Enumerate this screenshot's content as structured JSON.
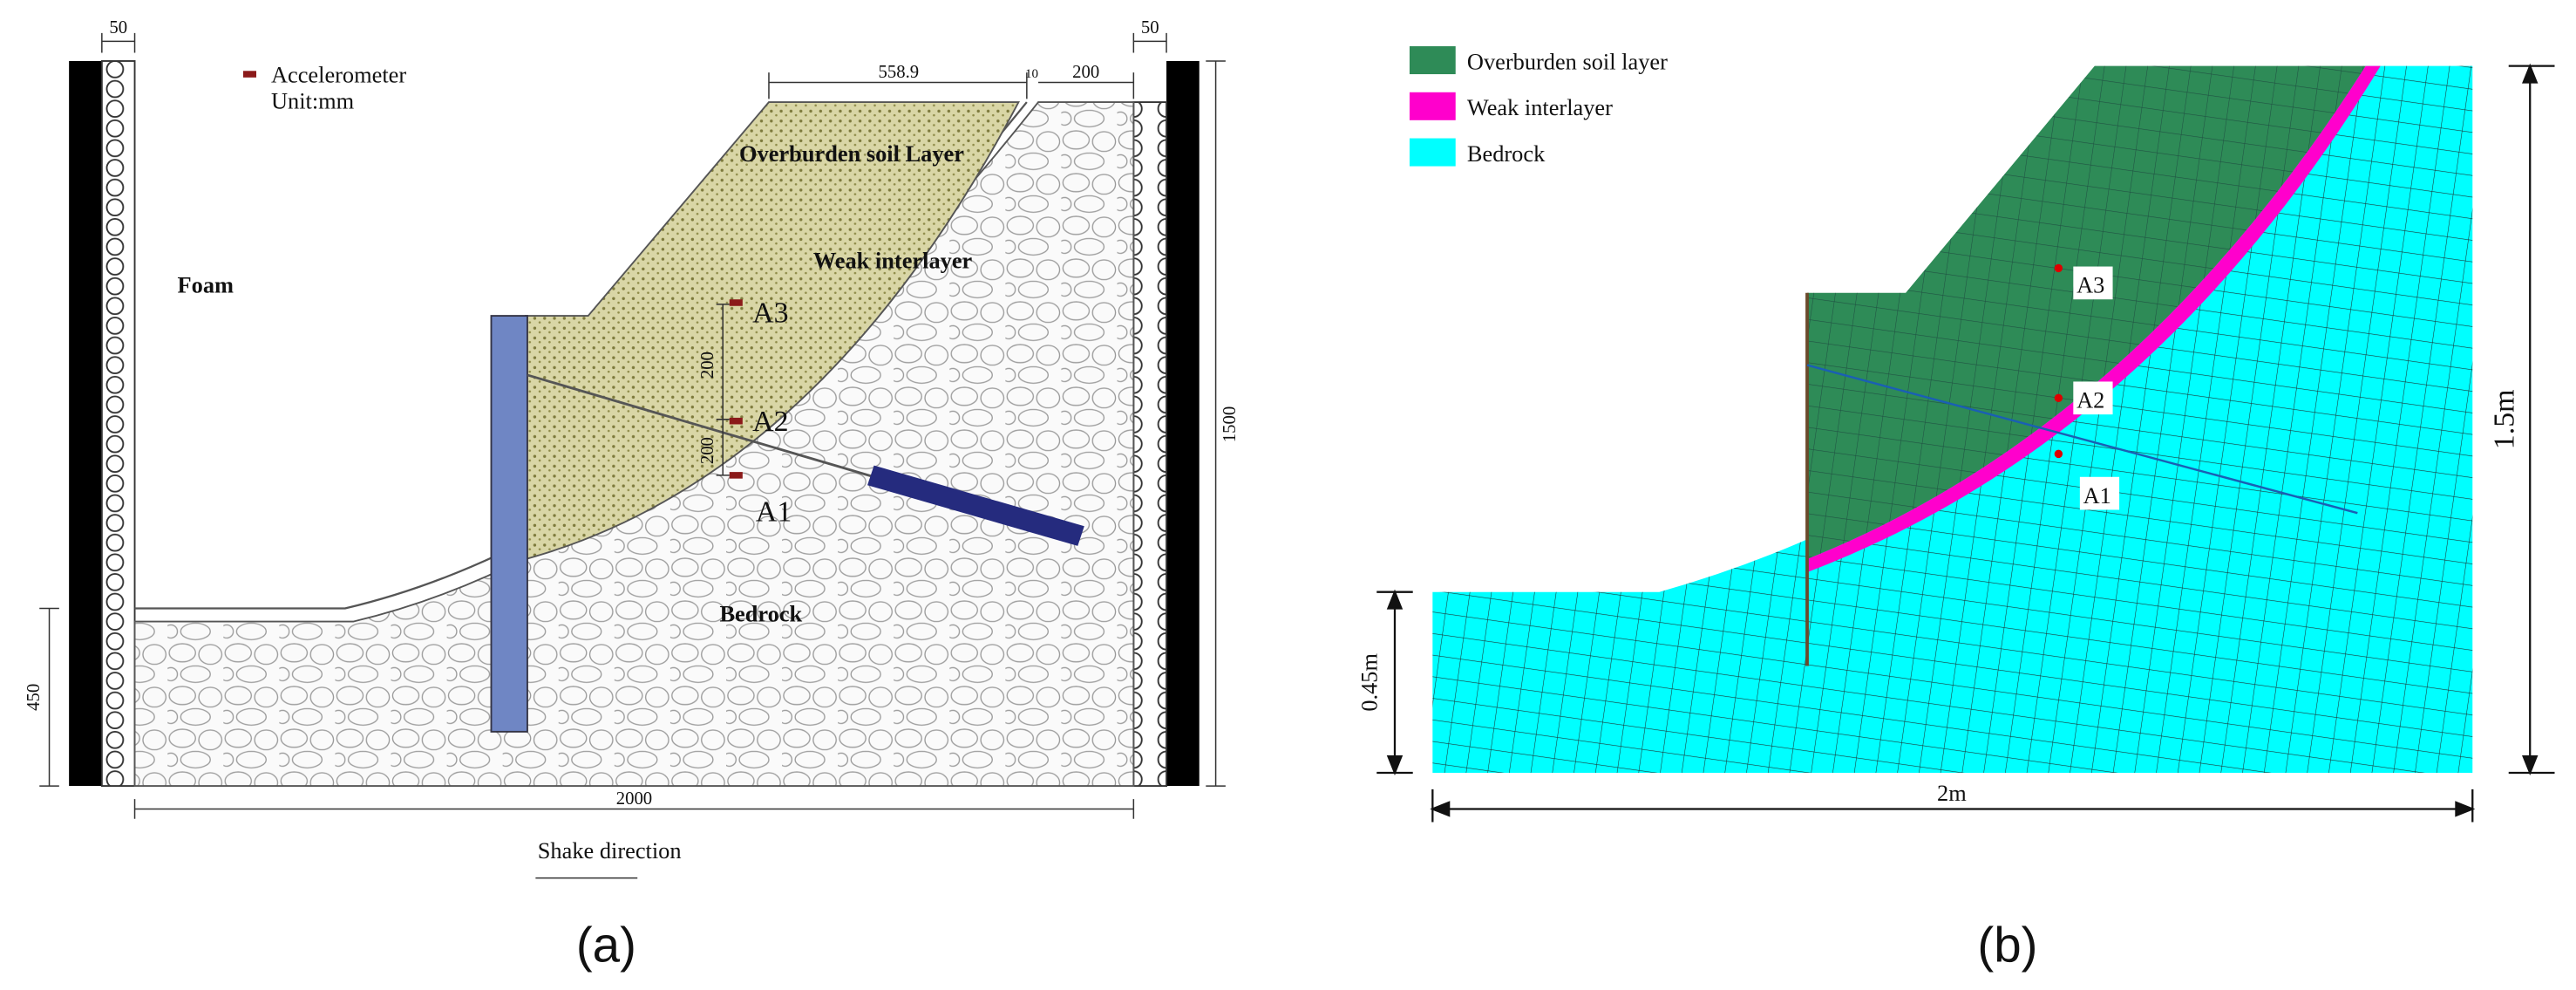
{
  "panel_a": {
    "caption": "(a)",
    "legend": {
      "marker": "Accelerometer",
      "unit": "Unit:mm"
    },
    "dimensions": {
      "left_wall": "50",
      "right_wall": "50",
      "crest_width": "558.9",
      "interlayer": "10",
      "crest_right": "200",
      "a3_a2": "200",
      "a2_a1": "200",
      "height": "1500",
      "base_height": "450",
      "width": "2000"
    },
    "regions": {
      "overburden": "Overburden soil Layer",
      "weak": "Weak interlayer",
      "foam": "Foam",
      "bedrock": "Bedrock"
    },
    "sensors": [
      "A3",
      "A2",
      "A1"
    ],
    "shake": "Shake direction"
  },
  "panel_b": {
    "caption": "(b)",
    "legend": [
      "Overburden soil layer",
      "Weak interlayer",
      "Bedrock"
    ],
    "sensors": [
      "A3",
      "A2",
      "A1"
    ],
    "dimensions": {
      "height": "1.5m",
      "base_height": "0.45m",
      "width": "2m"
    }
  }
}
